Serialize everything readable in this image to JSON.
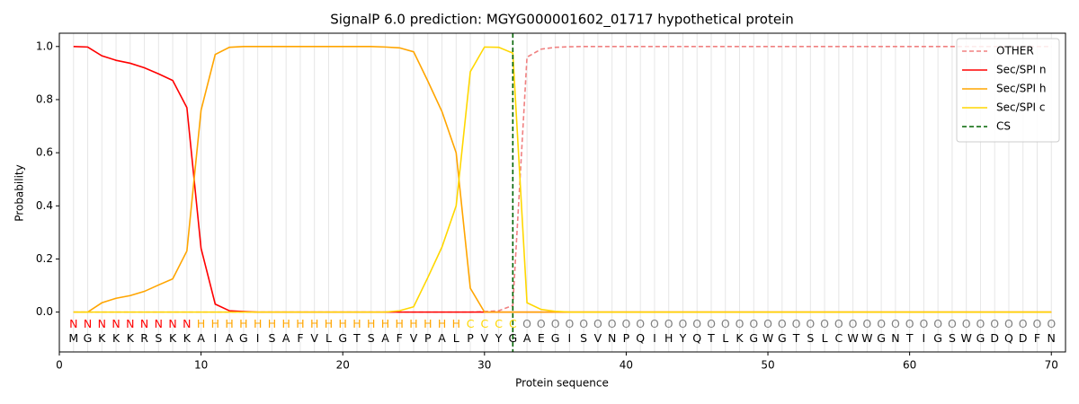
{
  "chart_data": {
    "type": "line",
    "title": "SignalP 6.0 prediction: MGYG000001602_01717 hypothetical protein",
    "xlabel": "Protein sequence",
    "ylabel": "Probability",
    "xlim": [
      0,
      71
    ],
    "ylim": [
      -0.15,
      1.05
    ],
    "xticks": [
      0,
      10,
      20,
      30,
      40,
      50,
      60,
      70
    ],
    "yticks": [
      {
        "value": 0,
        "label": "0.0"
      },
      {
        "value": 0.2,
        "label": "0.2"
      },
      {
        "value": 0.4,
        "label": "0.4"
      },
      {
        "value": 0.6,
        "label": "0.6"
      },
      {
        "value": 0.8,
        "label": "0.8"
      },
      {
        "value": 1,
        "label": "1.0"
      }
    ],
    "legend": "upper right",
    "x": [
      1,
      2,
      3,
      4,
      5,
      6,
      7,
      8,
      9,
      10,
      11,
      12,
      13,
      14,
      15,
      16,
      17,
      18,
      19,
      20,
      21,
      22,
      23,
      24,
      25,
      26,
      27,
      28,
      29,
      30,
      31,
      32,
      33,
      34,
      35,
      36,
      37,
      38,
      39,
      40,
      41,
      42,
      43,
      44,
      45,
      46,
      47,
      48,
      49,
      50,
      51,
      52,
      53,
      54,
      55,
      56,
      57,
      58,
      59,
      60,
      61,
      62,
      63,
      64,
      65,
      66,
      67,
      68,
      69,
      70
    ],
    "sequence": [
      "M",
      "G",
      "K",
      "K",
      "K",
      "R",
      "S",
      "K",
      "K",
      "A",
      "I",
      "A",
      "G",
      "I",
      "S",
      "A",
      "F",
      "V",
      "L",
      "G",
      "T",
      "S",
      "A",
      "F",
      "V",
      "P",
      "A",
      "L",
      "P",
      "V",
      "Y",
      "G",
      "A",
      "E",
      "G",
      "I",
      "S",
      "V",
      "N",
      "P",
      "Q",
      "I",
      "H",
      "Y",
      "Q",
      "T",
      "L",
      "K",
      "G",
      "W",
      "G",
      "T",
      "S",
      "L",
      "C",
      "W",
      "W",
      "G",
      "N",
      "T",
      "I",
      "G",
      "S",
      "W",
      "G",
      "D",
      "Q",
      "D",
      "F",
      "N"
    ],
    "labels": [
      "N",
      "N",
      "N",
      "N",
      "N",
      "N",
      "N",
      "N",
      "N",
      "H",
      "H",
      "H",
      "H",
      "H",
      "H",
      "H",
      "H",
      "H",
      "H",
      "H",
      "H",
      "H",
      "H",
      "H",
      "H",
      "H",
      "H",
      "H",
      "C",
      "C",
      "C",
      "C",
      "O",
      "O",
      "O",
      "O",
      "O",
      "O",
      "O",
      "O",
      "O",
      "O",
      "O",
      "O",
      "O",
      "O",
      "O",
      "O",
      "O",
      "O",
      "O",
      "O",
      "O",
      "O",
      "O",
      "O",
      "O",
      "O",
      "O",
      "O",
      "O",
      "O",
      "O",
      "O",
      "O",
      "O",
      "O",
      "O",
      "O",
      "O"
    ],
    "label_colors": {
      "N": "#ff0000",
      "H": "#ffa500",
      "C": "#ffd700",
      "O": "#808080"
    },
    "series": [
      {
        "name": "OTHER",
        "color": "#f08080",
        "dash": true,
        "values": [
          0,
          0,
          0,
          0,
          0,
          0,
          0,
          0,
          0,
          0,
          0,
          0,
          0,
          0,
          0,
          0,
          0,
          0,
          0,
          0,
          0,
          0,
          0,
          0,
          0,
          0,
          0,
          0,
          0,
          0.002,
          0.005,
          0.025,
          0.96,
          0.99,
          0.997,
          0.999,
          1,
          1,
          1,
          1,
          1,
          1,
          1,
          1,
          1,
          1,
          1,
          1,
          1,
          1,
          1,
          1,
          1,
          1,
          1,
          1,
          1,
          1,
          1,
          1,
          1,
          1,
          1,
          1,
          1,
          1,
          1,
          1,
          1,
          1
        ]
      },
      {
        "name": "Sec/SPI n",
        "color": "#ff0000",
        "values": [
          1.0,
          0.998,
          0.965,
          0.948,
          0.937,
          0.92,
          0.897,
          0.872,
          0.77,
          0.24,
          0.03,
          0.005,
          0.002,
          0,
          0,
          0,
          0,
          0,
          0,
          0,
          0,
          0,
          0,
          0,
          0,
          0,
          0,
          0,
          0,
          0,
          0,
          0,
          0,
          0,
          0,
          0,
          0,
          0,
          0,
          0,
          0,
          0,
          0,
          0,
          0,
          0,
          0,
          0,
          0,
          0,
          0,
          0,
          0,
          0,
          0,
          0,
          0,
          0,
          0,
          0,
          0,
          0,
          0,
          0,
          0,
          0,
          0,
          0,
          0,
          0
        ]
      },
      {
        "name": "Sec/SPI h",
        "color": "#ffa500",
        "values": [
          0,
          0,
          0.035,
          0.052,
          0.062,
          0.078,
          0.102,
          0.125,
          0.23,
          0.76,
          0.97,
          0.997,
          1,
          1,
          1,
          1,
          1,
          1,
          1,
          1,
          1,
          1,
          0.998,
          0.995,
          0.98,
          0.87,
          0.755,
          0.6,
          0.09,
          0,
          0,
          0,
          0,
          0,
          0,
          0,
          0,
          0,
          0,
          0,
          0,
          0,
          0,
          0,
          0,
          0,
          0,
          0,
          0,
          0,
          0,
          0,
          0,
          0,
          0,
          0,
          0,
          0,
          0,
          0,
          0,
          0,
          0,
          0,
          0,
          0,
          0,
          0,
          0,
          0
        ]
      },
      {
        "name": "Sec/SPI c",
        "color": "#ffd700",
        "values": [
          0,
          0,
          0,
          0,
          0,
          0,
          0,
          0,
          0,
          0,
          0,
          0,
          0,
          0,
          0,
          0,
          0,
          0,
          0,
          0,
          0,
          0,
          0,
          0.005,
          0.02,
          0.13,
          0.245,
          0.4,
          0.905,
          0.998,
          0.997,
          0.975,
          0.035,
          0.01,
          0.003,
          0,
          0,
          0,
          0,
          0,
          0,
          0,
          0,
          0,
          0,
          0,
          0,
          0,
          0,
          0,
          0,
          0,
          0,
          0,
          0,
          0,
          0,
          0,
          0,
          0,
          0,
          0,
          0,
          0,
          0,
          0,
          0,
          0,
          0,
          0
        ]
      }
    ],
    "cs": {
      "name": "CS",
      "x": 32,
      "color": "#006400"
    }
  }
}
